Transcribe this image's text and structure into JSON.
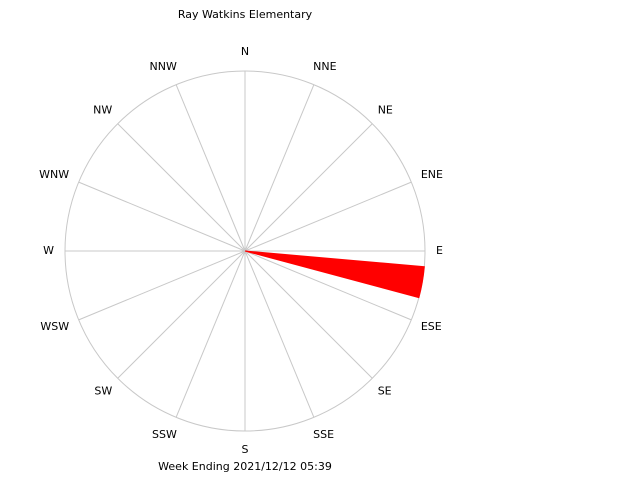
{
  "chart_data": {
    "type": "windrose",
    "title": "Ray Watkins Elementary",
    "footer": "Week Ending 2021/12/12 05:39",
    "directions": [
      "N",
      "NNE",
      "NE",
      "ENE",
      "E",
      "ESE",
      "SE",
      "SSE",
      "S",
      "SSW",
      "SW",
      "WSW",
      "W",
      "WNW",
      "NW",
      "NNW"
    ],
    "angles": [
      100
    ],
    "values": [
      100
    ],
    "wedge_width": 10,
    "rlim": [
      0,
      100
    ],
    "color": "#ff0000",
    "grid": true
  }
}
